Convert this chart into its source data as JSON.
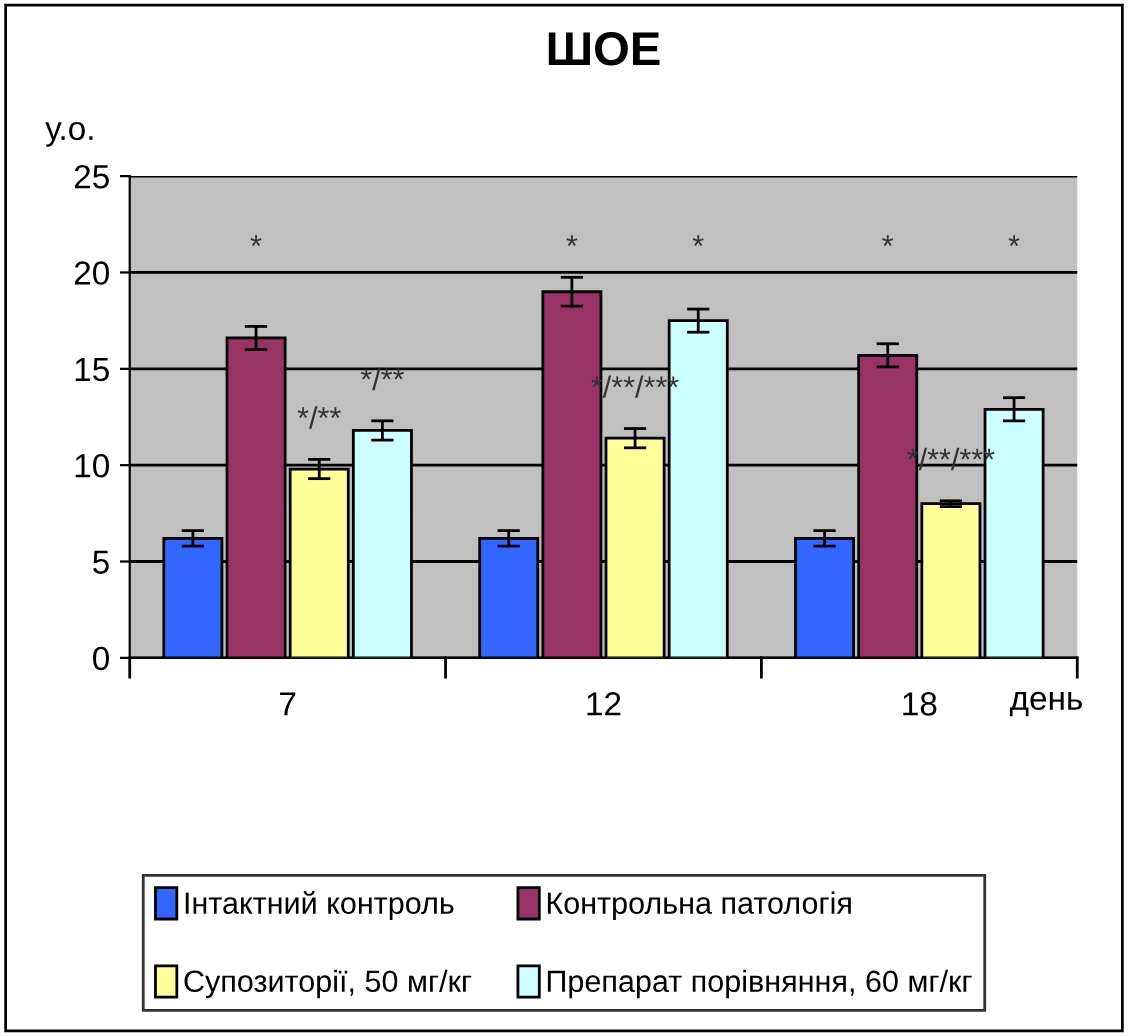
{
  "chart_data": {
    "type": "bar",
    "title": "ШОЕ",
    "ylabel": "у.о.",
    "xlabel": "день",
    "categories": [
      "7",
      "12",
      "18"
    ],
    "series": [
      {
        "name": "Інтактний контроль",
        "color": "#3366ff",
        "values": [
          6.2,
          6.2,
          6.2
        ],
        "errors": [
          0.4,
          0.4,
          0.4
        ]
      },
      {
        "name": "Контрольна патологія",
        "color": "#993366",
        "values": [
          16.6,
          19.0,
          15.7
        ],
        "errors": [
          0.6,
          0.75,
          0.6
        ]
      },
      {
        "name": "Супозиторії, 50 мг/кг",
        "color": "#ffff99",
        "values": [
          9.8,
          11.4,
          8.0
        ],
        "errors": [
          0.5,
          0.5,
          0.15
        ]
      },
      {
        "name": "Препарат порівняння, 60 мг/кг",
        "color": "#ccffff",
        "values": [
          11.8,
          17.5,
          12.9
        ],
        "errors": [
          0.5,
          0.6,
          0.6
        ]
      }
    ],
    "ylim": [
      0,
      25
    ],
    "yticks": [
      0,
      5,
      10,
      15,
      20,
      25
    ],
    "grid": "y",
    "legend": "bottom",
    "annotations": [
      "*",
      "*/**",
      "*/**",
      "*",
      "*/**/***",
      "*",
      "*",
      "*/**/***",
      "*"
    ]
  }
}
